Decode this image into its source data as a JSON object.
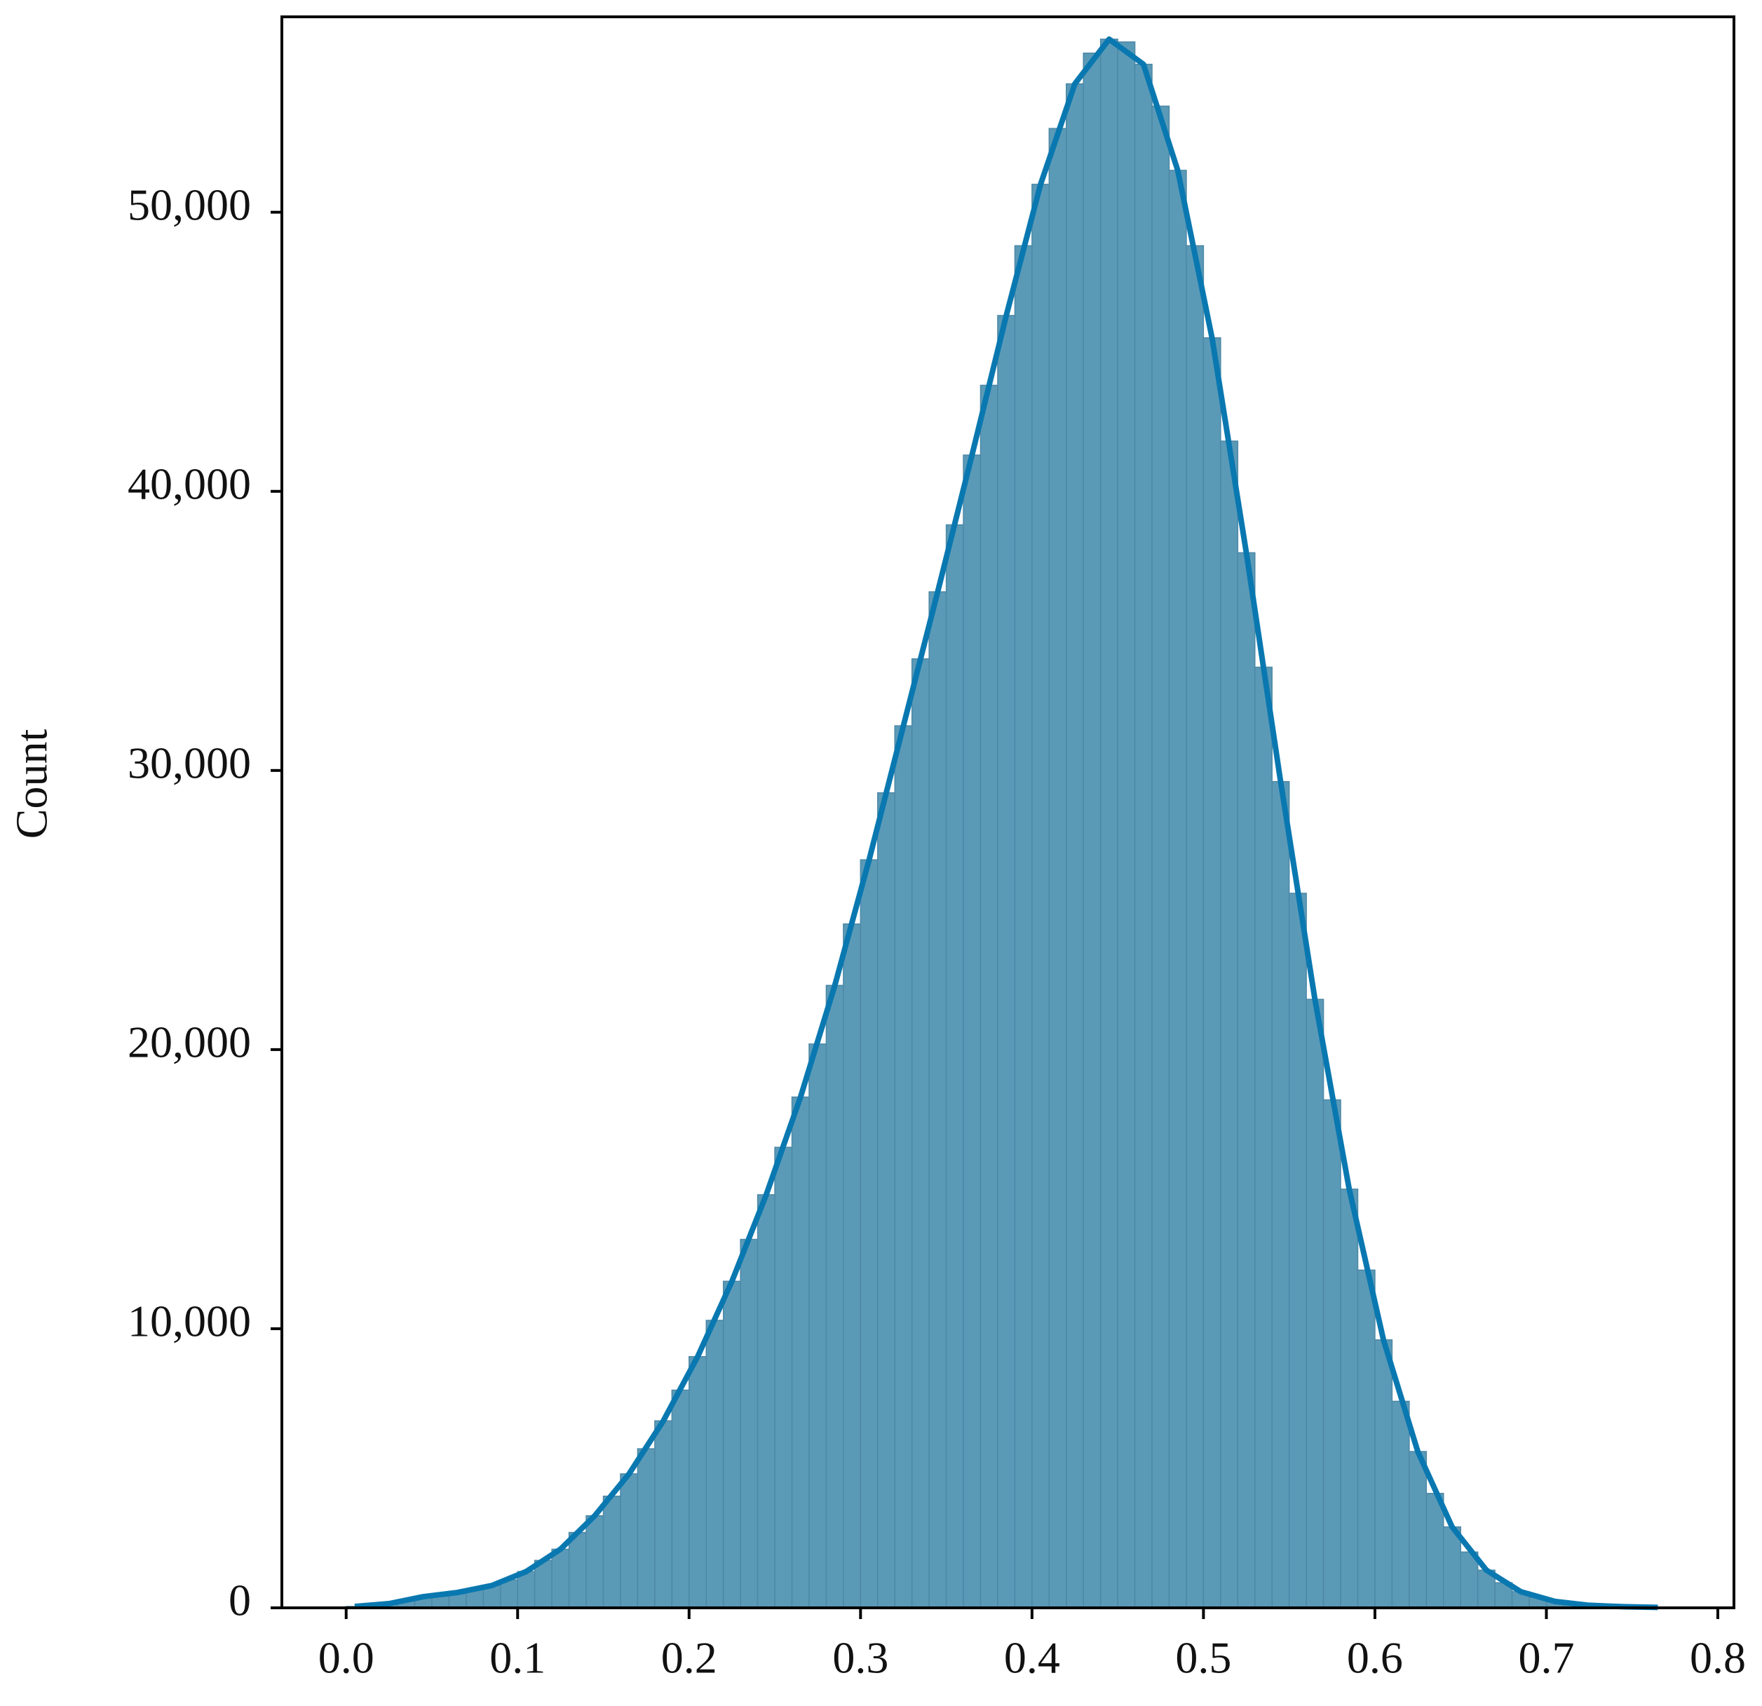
{
  "chart_data": {
    "type": "histogram",
    "y_label": "Count",
    "bins": [
      0.0,
      0.01,
      0.02,
      0.03,
      0.04,
      0.05,
      0.06,
      0.07,
      0.08,
      0.09,
      0.1,
      0.11,
      0.12,
      0.13,
      0.14,
      0.15,
      0.16,
      0.17,
      0.18,
      0.19,
      0.2,
      0.21,
      0.22,
      0.23,
      0.24,
      0.25,
      0.26,
      0.27,
      0.28,
      0.29,
      0.3,
      0.31,
      0.32,
      0.33,
      0.34,
      0.35,
      0.36,
      0.37,
      0.38,
      0.39,
      0.4,
      0.41,
      0.42,
      0.43,
      0.44,
      0.45,
      0.46,
      0.47,
      0.48,
      0.49,
      0.5,
      0.51,
      0.52,
      0.53,
      0.54,
      0.55,
      0.56,
      0.57,
      0.58,
      0.59,
      0.6,
      0.61,
      0.62,
      0.63,
      0.64,
      0.65,
      0.66,
      0.67,
      0.68,
      0.69,
      0.7,
      0.71,
      0.72,
      0.73,
      0.74,
      0.75,
      0.76,
      0.77,
      0.78
    ],
    "counts": [
      50,
      80,
      150,
      250,
      400,
      500,
      550,
      650,
      800,
      1000,
      1300,
      1700,
      2100,
      2700,
      3300,
      4000,
      4800,
      5700,
      6700,
      7800,
      9000,
      10300,
      11700,
      13200,
      14800,
      16500,
      18300,
      20200,
      22300,
      24500,
      26800,
      29200,
      31600,
      34000,
      36400,
      38800,
      41300,
      43800,
      46300,
      48800,
      51000,
      53000,
      54600,
      55700,
      56200,
      56100,
      55300,
      53800,
      51500,
      48800,
      45500,
      41800,
      37800,
      33700,
      29600,
      25600,
      21800,
      18200,
      15000,
      12100,
      9600,
      7400,
      5600,
      4100,
      2900,
      2000,
      1350,
      900,
      580,
      370,
      230,
      140,
      90,
      60,
      40,
      25,
      15,
      10
    ],
    "color": "#5b9ab7",
    "edge_color": "#4c88a6",
    "kde": {
      "color": "#0a78b0",
      "x": [
        0.005,
        0.025,
        0.045,
        0.065,
        0.085,
        0.105,
        0.125,
        0.145,
        0.165,
        0.185,
        0.205,
        0.225,
        0.245,
        0.265,
        0.285,
        0.305,
        0.325,
        0.345,
        0.365,
        0.385,
        0.405,
        0.425,
        0.445,
        0.465,
        0.485,
        0.505,
        0.525,
        0.545,
        0.565,
        0.585,
        0.605,
        0.625,
        0.645,
        0.665,
        0.685,
        0.705,
        0.725,
        0.745,
        0.765
      ],
      "values": [
        50,
        150,
        400,
        550,
        800,
        1300,
        2100,
        3300,
        4800,
        6700,
        9000,
        11700,
        14800,
        18300,
        22300,
        26800,
        31600,
        36400,
        41300,
        46300,
        51000,
        54600,
        56200,
        55300,
        51500,
        45500,
        37800,
        29600,
        21800,
        15000,
        9600,
        5600,
        2900,
        1350,
        580,
        230,
        90,
        40,
        15
      ]
    },
    "xlim": [
      -0.0375,
      0.8094
    ],
    "ylim": [
      0,
      57000
    ],
    "xticks": [
      {
        "value": 0,
        "label": "0.0"
      },
      0.1,
      0.2,
      0.3,
      0.4,
      0.5,
      0.6,
      0.7,
      0.8
    ],
    "yticks": [
      0,
      {
        "value": 10000,
        "label": "10,000"
      },
      {
        "value": 20000,
        "label": "20,000"
      },
      {
        "value": 30000,
        "label": "30,000"
      },
      {
        "value": 40000,
        "label": "40,000"
      },
      {
        "value": 50000,
        "label": "50,000"
      }
    ]
  }
}
